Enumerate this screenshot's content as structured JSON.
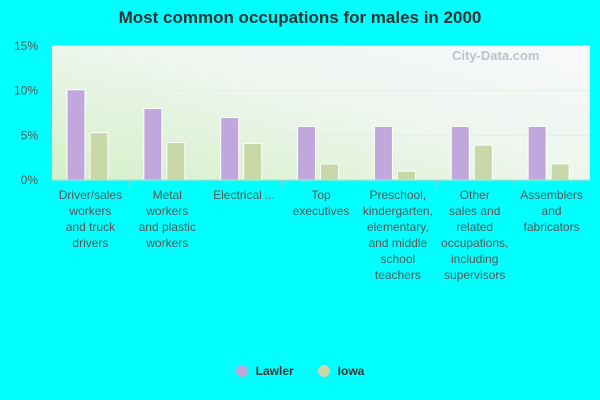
{
  "chart_data": {
    "type": "bar",
    "title": "Most common occupations for males in 2000",
    "categories": [
      [
        "Driver/sales",
        "workers",
        "and truck",
        "drivers"
      ],
      [
        "Metal",
        "workers",
        "and plastic",
        "workers"
      ],
      [
        "Electrical ..."
      ],
      [
        "Top",
        "executives"
      ],
      [
        "Preschool,",
        "kindergarten,",
        "elementary,",
        "and middle",
        "school",
        "teachers"
      ],
      [
        "Other",
        "sales and",
        "related",
        "occupations,",
        "including",
        "supervisors"
      ],
      [
        "Assemblers",
        "and",
        "fabricators"
      ]
    ],
    "series": [
      {
        "name": "Lawler",
        "color": "#c0a8dc",
        "values": [
          10.1,
          8.0,
          7.0,
          6.0,
          6.0,
          6.0,
          6.0
        ]
      },
      {
        "name": "Iowa",
        "color": "#c8d8a8",
        "values": [
          5.3,
          4.2,
          4.1,
          1.8,
          1.0,
          3.9,
          1.8
        ]
      }
    ],
    "yticks": [
      "0%",
      "5%",
      "10%",
      "15%"
    ],
    "ylim": [
      0,
      15
    ],
    "grid": true,
    "legend_position": "bottom"
  },
  "watermark": "City-Data.com"
}
